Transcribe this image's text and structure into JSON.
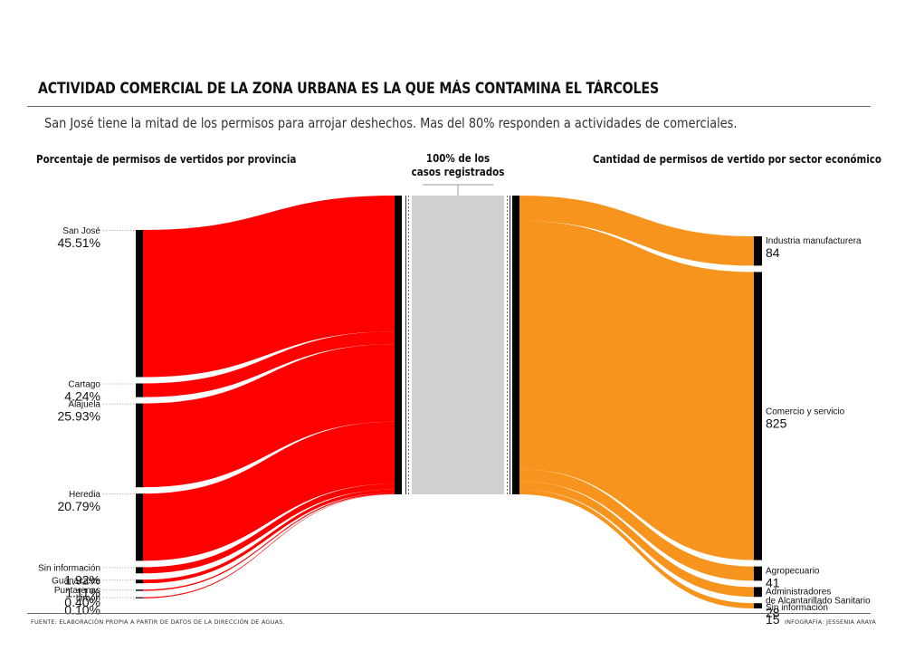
{
  "header": {
    "title": "ACTIVIDAD COMERCIAL DE LA ZONA URBANA ES LA QUE MÁS CONTAMINA EL TÁRCOLES",
    "subtitle": "San José tiene la mitad de los permisos para arrojar deshechos. Mas del 80% responden a actividades de comerciales."
  },
  "columns": {
    "left": "Porcentaje de permisos de vertidos por provincia",
    "center_line1": "100% de los",
    "center_line2": "casos registrados",
    "right": "Cantidad de permisos de vertido por sector económico"
  },
  "footer": {
    "source": "FUENTE: ELABORACIÓN PROPIA A PARTIR DE DATOS DE LA DIRECCIÓN DE AGUAS.",
    "credit": "INFOGRAFÍA: JESSENIA ARAYA"
  },
  "colors": {
    "provinces": "#ff0000",
    "sectors": "#f7941d",
    "total": "#d0d0d0",
    "bar": "#000000"
  },
  "chart_data": [
    {
      "type": "sankey",
      "title": "Porcentaje de permisos de vertidos por provincia",
      "unit": "%",
      "nodes": [
        {
          "label": "San José",
          "value": 45.51,
          "display": "45.51%"
        },
        {
          "label": "Cartago",
          "value": 4.24,
          "display": "4.24%"
        },
        {
          "label": "Alajuela",
          "value": 25.93,
          "display": "25.93%"
        },
        {
          "label": "Heredia",
          "value": 20.79,
          "display": "20.79%"
        },
        {
          "label": "Sin información",
          "value": 1.92,
          "display": "1.92%"
        },
        {
          "label": "Guanacaste",
          "value": 1.11,
          "display": "1.11%"
        },
        {
          "label": "Puntarenas",
          "value": 0.4,
          "display": "0.40%"
        },
        {
          "label": "Limón",
          "value": 0.1,
          "display": "0.10%"
        }
      ],
      "target": "100% de los casos registrados"
    },
    {
      "type": "sankey",
      "title": "Cantidad de permisos de vertido por sector económico",
      "unit": "permisos",
      "source": "100% de los casos registrados",
      "nodes": [
        {
          "label": "Industria manufacturera",
          "value": 84
        },
        {
          "label": "Comercio y servicio",
          "value": 825
        },
        {
          "label": "Agropecuario",
          "value": 41
        },
        {
          "label": "Administradores de Alcantarillado Sanitario",
          "label_lines": [
            "Administradores",
            "de Alcantarillado Sanitario"
          ],
          "value": 28
        },
        {
          "label": "Sin información",
          "value": 15
        }
      ]
    }
  ]
}
